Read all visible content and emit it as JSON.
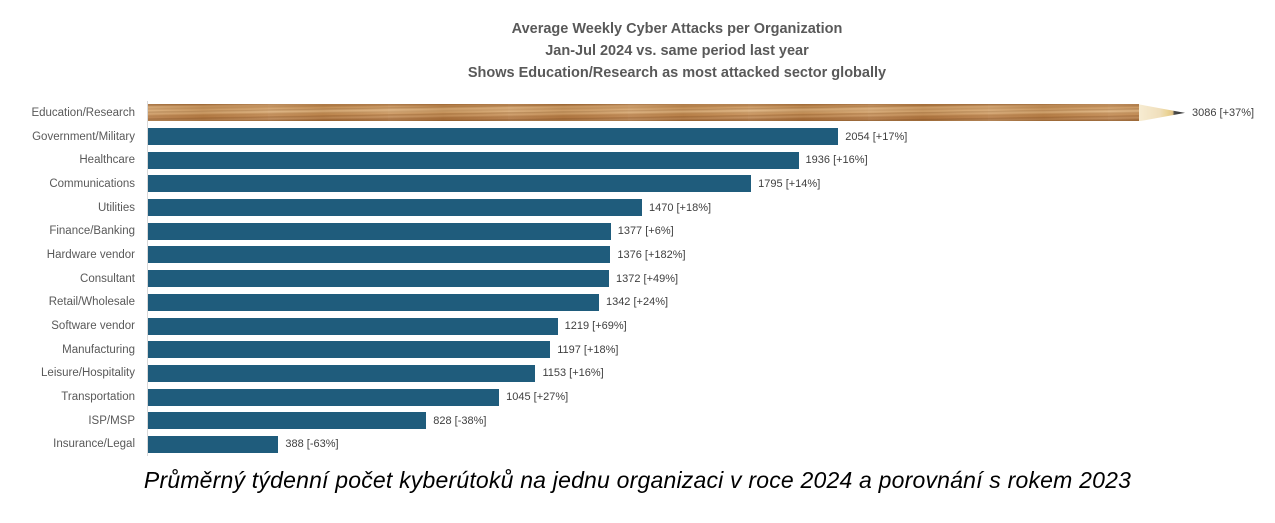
{
  "title": {
    "line1": "Average Weekly Cyber Attacks per Organization",
    "line2": "Jan-Jul 2024 vs. same period last year",
    "line3": "Shows Education/Research as most attacked sector globally"
  },
  "caption": "Průměrný týdenní počet kyberútoků na jednu organizaci v roce 2024 a porovnání s rokem 2023",
  "colors": {
    "bar": "#1f5c7c",
    "category_label": "#595959",
    "value_label": "#3f3f3f",
    "title": "#595959",
    "axis_line": "#d9d9d9",
    "pencil_wood": "#c78e54",
    "pencil_cone_wood": "#f0dfbc",
    "pencil_graphite_tip": "#2f2f2f"
  },
  "chart_data": {
    "type": "bar",
    "orientation": "horizontal",
    "title": "Average Weekly Cyber Attacks per Organization",
    "subtitle": "Jan-Jul 2024 vs. same period last year",
    "subtitle2": "Shows Education/Research as most attacked sector globally",
    "xlabel": "",
    "ylabel": "",
    "grid": false,
    "legend": "none",
    "xlim": [
      0,
      3086
    ],
    "max_value": 3086,
    "highlight_category": "Education/Research",
    "highlight_style": "pencil-shaped bar",
    "categories": [
      "Education/Research",
      "Government/Military",
      "Healthcare",
      "Communications",
      "Utilities",
      "Finance/Banking",
      "Hardware vendor",
      "Consultant",
      "Retail/Wholesale",
      "Software vendor",
      "Manufacturing",
      "Leisure/Hospitality",
      "Transportation",
      "ISP/MSP",
      "Insurance/Legal"
    ],
    "values": [
      3086,
      2054,
      1936,
      1795,
      1470,
      1377,
      1376,
      1372,
      1342,
      1219,
      1197,
      1153,
      1045,
      828,
      388
    ],
    "pct_change": [
      "+37%",
      "+17%",
      "+16%",
      "+14%",
      "+18%",
      "+6%",
      "+182%",
      "+49%",
      "+24%",
      "+69%",
      "+18%",
      "+16%",
      "+27%",
      "-38%",
      "-63%"
    ],
    "data_labels": [
      "3086 [+37%]",
      "2054 [+17%]",
      "1936 [+16%]",
      "1795 [+14%]",
      "1470 [+18%]",
      "1377 [+6%]",
      "1376 [+182%]",
      "1372 [+49%]",
      "1342 [+24%]",
      "1219 [+69%]",
      "1197 [+18%]",
      "1153 [+16%]",
      "1045 [+27%]",
      "828 [-38%]",
      "388 [-63%]"
    ]
  }
}
